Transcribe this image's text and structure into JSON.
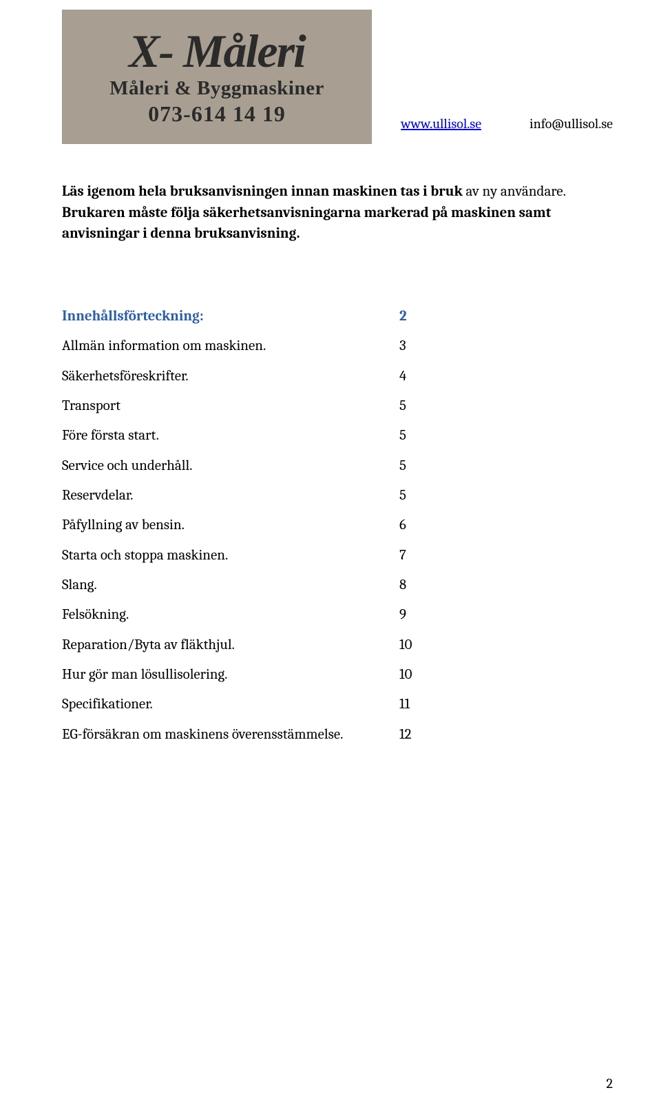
{
  "header": {
    "logo_title": "X- Måleri",
    "logo_sub": "Måleri & Byggmaskiner",
    "logo_phone": "073-614 14 19",
    "link_url": "www.ullisol.se",
    "email": "info@ullisol.se"
  },
  "intro": {
    "line1_bold": "Läs igenom hela bruksanvisningen innan maskinen tas i bruk ",
    "line1_tail": "av ny användare.",
    "line2": "Brukaren måste följa säkerhetsanvisningarna markerad på maskinen samt anvisningar i denna bruksanvisning."
  },
  "toc": {
    "heading": {
      "label": "Innehållsförteckning:",
      "page": "2"
    },
    "rows": [
      {
        "label": "Allmän information om maskinen.",
        "page": "3"
      },
      {
        "label": "Säkerhetsföreskrifter.",
        "page": "4"
      },
      {
        "label": "Transport",
        "page": "5"
      },
      {
        "label": "Före första start.",
        "page": "5"
      },
      {
        "label": "Service och underhåll.",
        "page": "5"
      },
      {
        "label": "Reservdelar.",
        "page": "5"
      },
      {
        "label": "Påfyllning av bensin.",
        "page": "6"
      },
      {
        "label": "Starta och stoppa maskinen.",
        "page": "7"
      },
      {
        "label": "Slang.",
        "page": "8"
      },
      {
        "label": "Felsökning.",
        "page": "9"
      },
      {
        "label": "Reparation/Byta av fläkthjul.",
        "page": "10"
      },
      {
        "label": "Hur gör man lösullisolering.",
        "page": "10"
      },
      {
        "label": "Specifikationer.",
        "page": "11"
      },
      {
        "label": "EG-försäkran om maskinens överensstämmelse.",
        "page": "12"
      }
    ]
  },
  "page_number": "2",
  "colors": {
    "heading_color": "#2e5fa3",
    "link_color": "#0000cc",
    "logo_bg": "#a89f92",
    "text_color": "#000000",
    "bg_color": "#ffffff"
  }
}
